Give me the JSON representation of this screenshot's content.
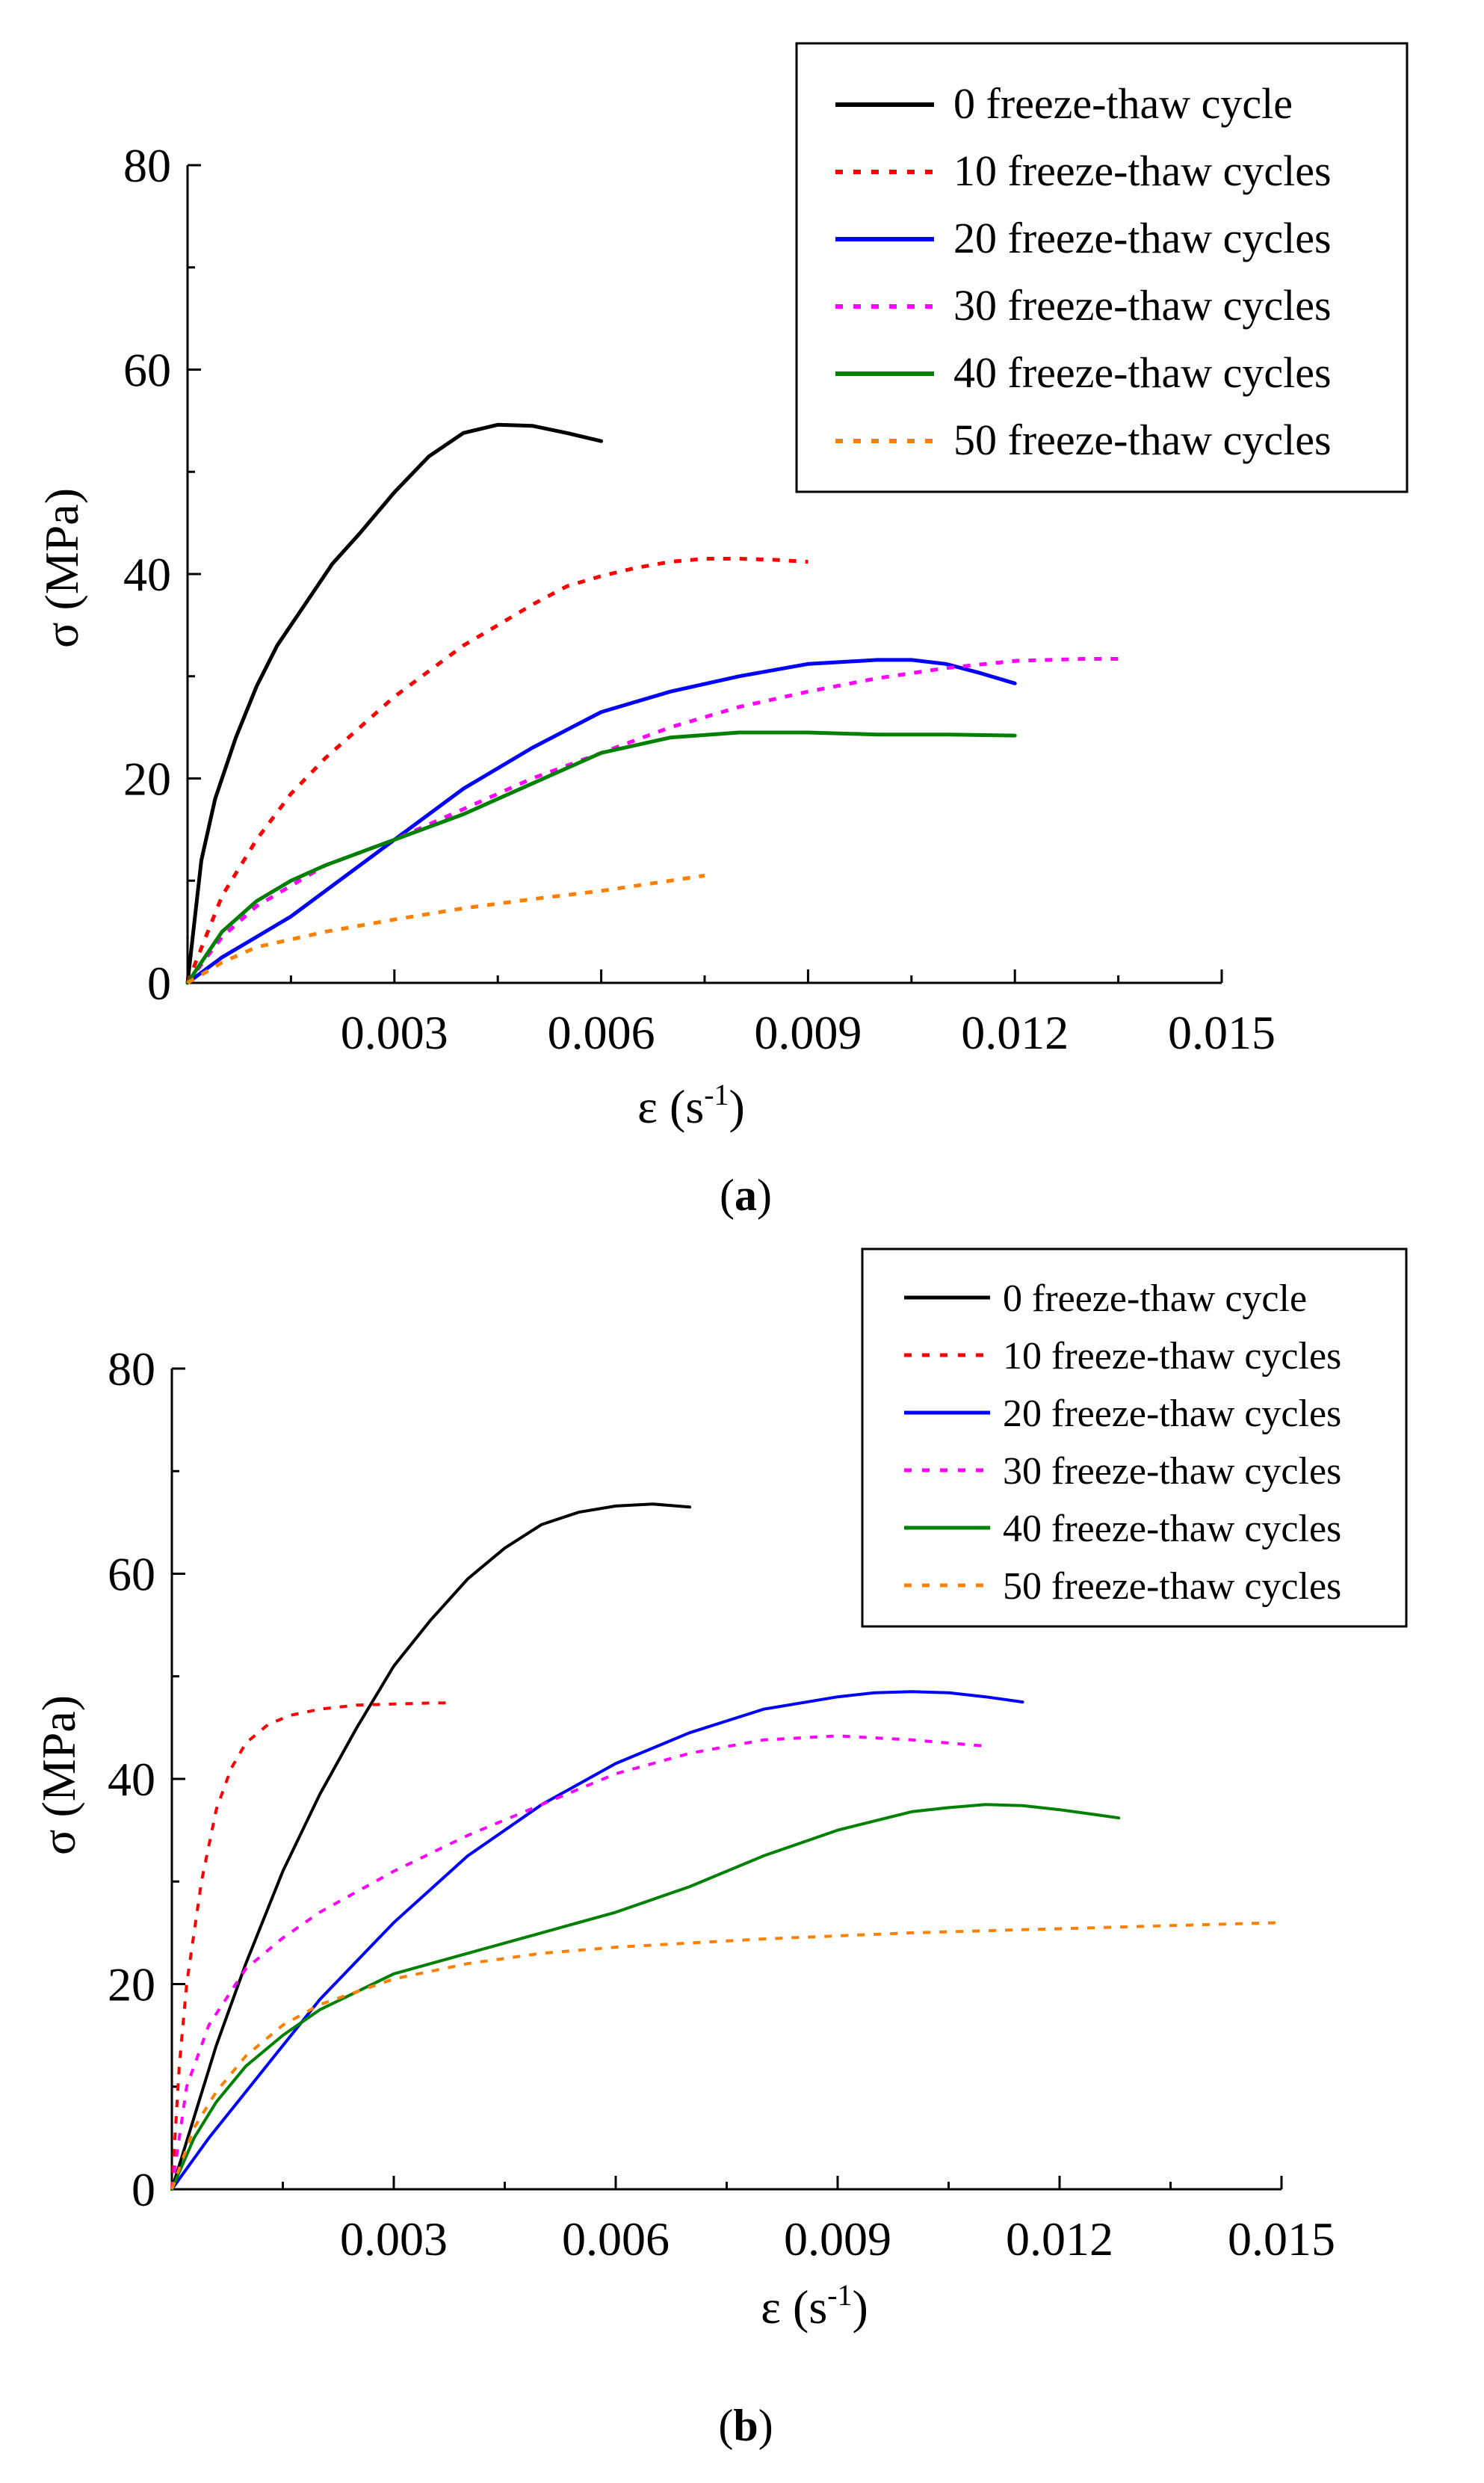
{
  "chart_data": [
    {
      "panel_label_open": "(",
      "panel_label_letter": "a",
      "panel_label_close": ")",
      "type": "line",
      "title": "",
      "xlabel": "ε (s",
      "xlabel_sup": "-1",
      "xlabel_close": ")",
      "ylabel": "σ (MPa)",
      "xlim": [
        0,
        0.015
      ],
      "ylim": [
        0,
        80
      ],
      "xticks": [
        0.003,
        0.006,
        0.009,
        0.012,
        0.015
      ],
      "xtick_labels": [
        "0.003",
        "0.006",
        "0.009",
        "0.012",
        "0.015"
      ],
      "yticks": [
        0,
        20,
        40,
        60,
        80
      ],
      "ytick_labels": [
        "0",
        "20",
        "40",
        "60",
        "80"
      ],
      "grid": false,
      "legend_position": "top-right",
      "series": [
        {
          "name": "0 freeze-thaw cycle",
          "color": "#000000",
          "dashed": false,
          "x": [
            0,
            0.0001,
            0.0002,
            0.0004,
            0.0007,
            0.001,
            0.0013,
            0.0017,
            0.0021,
            0.0025,
            0.003,
            0.0035,
            0.004,
            0.0045,
            0.005,
            0.0055,
            0.006
          ],
          "y": [
            0,
            6,
            12,
            18,
            24,
            29,
            33,
            37,
            41,
            44,
            48,
            51.5,
            53.8,
            54.6,
            54.5,
            53.8,
            53
          ]
        },
        {
          "name": "10 freeze-thaw cycles",
          "color": "#ff0000",
          "dashed": true,
          "x": [
            0,
            0.0005,
            0.001,
            0.0015,
            0.002,
            0.0025,
            0.003,
            0.0035,
            0.004,
            0.0045,
            0.005,
            0.0055,
            0.006,
            0.0065,
            0.007,
            0.0075,
            0.008,
            0.0085,
            0.009
          ],
          "y": [
            0,
            8.5,
            14,
            18.5,
            22,
            25,
            28,
            30.5,
            33,
            35,
            37,
            38.8,
            39.8,
            40.6,
            41.2,
            41.5,
            41.5,
            41.4,
            41.2
          ]
        },
        {
          "name": "20 freeze-thaw cycles",
          "color": "#0000ff",
          "dashed": false,
          "x": [
            0,
            0.0005,
            0.001,
            0.0015,
            0.002,
            0.003,
            0.004,
            0.005,
            0.006,
            0.007,
            0.008,
            0.009,
            0.01,
            0.0105,
            0.011,
            0.0115,
            0.012
          ],
          "y": [
            0,
            2.5,
            4.5,
            6.5,
            9,
            14,
            19,
            23,
            26.5,
            28.5,
            30,
            31.2,
            31.6,
            31.6,
            31.2,
            30.3,
            29.3
          ]
        },
        {
          "name": "30 freeze-thaw cycles",
          "color": "#ff00ff",
          "dashed": true,
          "x": [
            0,
            0.0005,
            0.001,
            0.0015,
            0.002,
            0.003,
            0.004,
            0.005,
            0.006,
            0.007,
            0.008,
            0.009,
            0.01,
            0.011,
            0.012,
            0.013,
            0.0135
          ],
          "y": [
            0,
            4.5,
            7.5,
            9.5,
            11.5,
            14,
            17,
            20,
            22.5,
            25,
            27,
            28.5,
            29.8,
            30.8,
            31.5,
            31.7,
            31.7
          ]
        },
        {
          "name": "40 freeze-thaw cycles",
          "color": "#008000",
          "dashed": false,
          "x": [
            0,
            0.0005,
            0.001,
            0.0015,
            0.002,
            0.003,
            0.004,
            0.005,
            0.006,
            0.007,
            0.008,
            0.009,
            0.01,
            0.011,
            0.012
          ],
          "y": [
            0,
            5,
            8,
            10,
            11.5,
            14,
            16.5,
            19.5,
            22.5,
            24,
            24.5,
            24.5,
            24.3,
            24.3,
            24.2
          ]
        },
        {
          "name": "50 freeze-thaw cycles",
          "color": "#ff8000",
          "dashed": true,
          "x": [
            0,
            0.0005,
            0.001,
            0.002,
            0.003,
            0.004,
            0.005,
            0.006,
            0.007,
            0.0075
          ],
          "y": [
            0,
            2,
            3.5,
            5,
            6.2,
            7.3,
            8.2,
            9,
            10,
            10.5
          ]
        }
      ]
    },
    {
      "panel_label_open": "(",
      "panel_label_letter": "b",
      "panel_label_close": ")",
      "type": "line",
      "title": "",
      "xlabel": "ε (s",
      "xlabel_sup": "-1",
      "xlabel_close": ")",
      "ylabel": "σ (MPa)",
      "xlim": [
        0,
        0.015
      ],
      "ylim": [
        0,
        80
      ],
      "xticks": [
        0.003,
        0.006,
        0.009,
        0.012,
        0.015
      ],
      "xtick_labels": [
        "0.003",
        "0.006",
        "0.009",
        "0.012",
        "0.015"
      ],
      "yticks": [
        0,
        20,
        40,
        60,
        80
      ],
      "ytick_labels": [
        "0",
        "20",
        "40",
        "60",
        "80"
      ],
      "grid": false,
      "legend_position": "top-right",
      "series": [
        {
          "name": "0 freeze-thaw cycle",
          "color": "#000000",
          "dashed": false,
          "x": [
            0,
            0.0003,
            0.0006,
            0.001,
            0.0015,
            0.002,
            0.0025,
            0.003,
            0.0035,
            0.004,
            0.0045,
            0.005,
            0.0055,
            0.006,
            0.0065,
            0.007
          ],
          "y": [
            0,
            7,
            14,
            22,
            31,
            38.5,
            45,
            51,
            55.5,
            59.5,
            62.5,
            64.8,
            66,
            66.6,
            66.8,
            66.5
          ]
        },
        {
          "name": "10 freeze-thaw cycles",
          "color": "#ff0000",
          "dashed": true,
          "x": [
            0,
            0.0001,
            0.0002,
            0.0004,
            0.0006,
            0.0008,
            0.001,
            0.0013,
            0.0016,
            0.002,
            0.0025,
            0.003,
            0.0035,
            0.0038
          ],
          "y": [
            0,
            12,
            20,
            30,
            37,
            41,
            43.5,
            45.3,
            46.2,
            46.8,
            47.2,
            47.3,
            47.4,
            47.4
          ]
        },
        {
          "name": "20 freeze-thaw cycles",
          "color": "#0000ff",
          "dashed": false,
          "x": [
            0,
            0.0005,
            0.001,
            0.0015,
            0.002,
            0.003,
            0.004,
            0.005,
            0.006,
            0.007,
            0.008,
            0.009,
            0.0095,
            0.01,
            0.0105,
            0.011,
            0.0115
          ],
          "y": [
            0,
            5,
            9.5,
            14,
            18.5,
            26,
            32.5,
            37.5,
            41.5,
            44.5,
            46.8,
            48,
            48.4,
            48.5,
            48.4,
            48,
            47.5
          ]
        },
        {
          "name": "30 freeze-thaw cycles",
          "color": "#ff00ff",
          "dashed": true,
          "x": [
            0,
            0.0002,
            0.0005,
            0.001,
            0.0015,
            0.002,
            0.003,
            0.004,
            0.005,
            0.006,
            0.007,
            0.008,
            0.009,
            0.01,
            0.011
          ],
          "y": [
            0,
            10,
            16,
            21.5,
            24.5,
            27,
            31,
            34.5,
            37.5,
            40.5,
            42.5,
            43.8,
            44.2,
            43.8,
            43.2
          ]
        },
        {
          "name": "40 freeze-thaw cycles",
          "color": "#008000",
          "dashed": false,
          "x": [
            0,
            0.0003,
            0.0006,
            0.001,
            0.0015,
            0.002,
            0.003,
            0.004,
            0.005,
            0.006,
            0.007,
            0.008,
            0.009,
            0.01,
            0.0105,
            0.011,
            0.0115,
            0.012,
            0.0125,
            0.0128
          ],
          "y": [
            0,
            5,
            8.5,
            12,
            15,
            17.5,
            21,
            23,
            25,
            27,
            29.5,
            32.5,
            35,
            36.8,
            37.2,
            37.5,
            37.4,
            37,
            36.5,
            36.2
          ]
        },
        {
          "name": "50 freeze-thaw cycles",
          "color": "#ff8000",
          "dashed": true,
          "x": [
            0,
            0.0003,
            0.0006,
            0.001,
            0.0015,
            0.002,
            0.003,
            0.004,
            0.005,
            0.006,
            0.007,
            0.008,
            0.009,
            0.01,
            0.011,
            0.012,
            0.013,
            0.014,
            0.015
          ],
          "y": [
            0,
            6,
            9.5,
            13,
            16,
            18,
            20.5,
            22,
            23,
            23.6,
            24,
            24.4,
            24.7,
            25,
            25.2,
            25.4,
            25.6,
            25.8,
            26
          ]
        }
      ]
    }
  ]
}
